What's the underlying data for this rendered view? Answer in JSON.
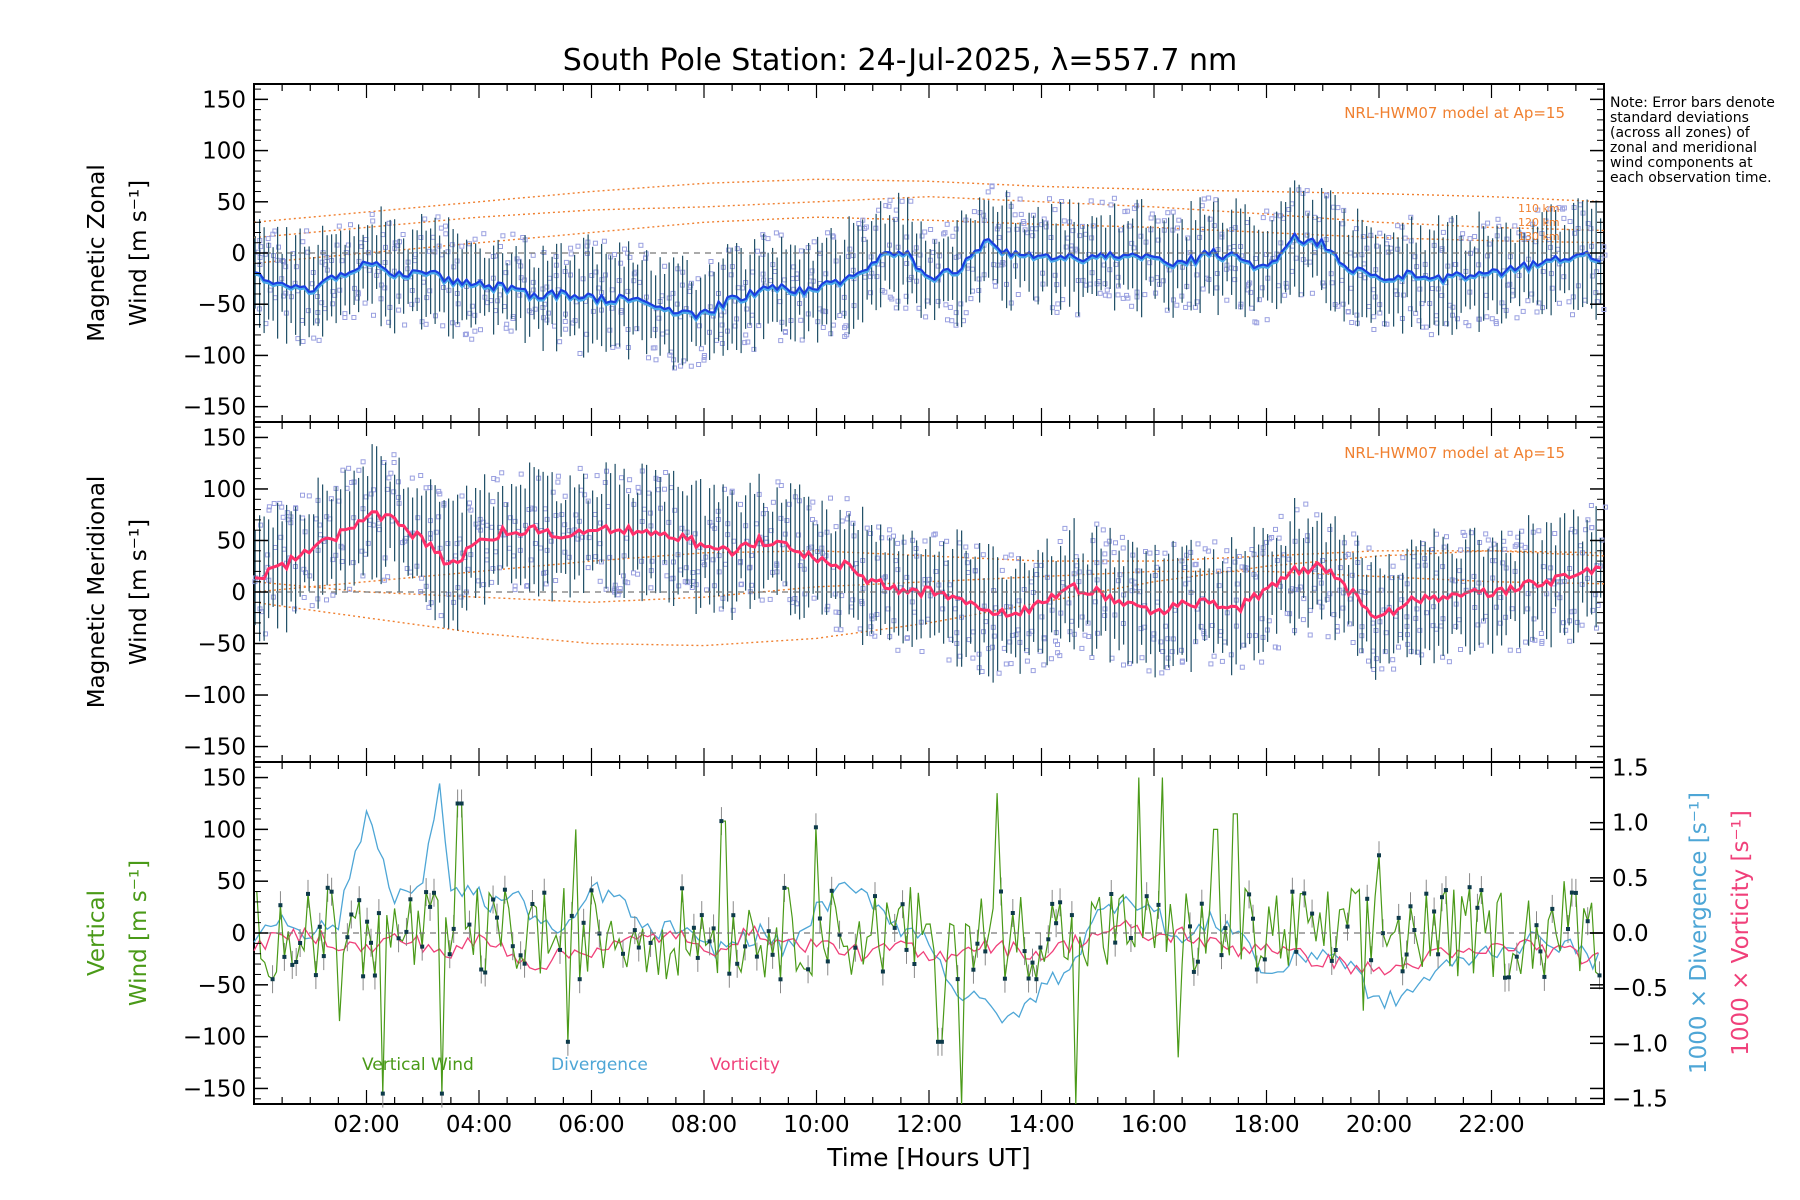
{
  "title": "South Pole Station: 24-Jul-2025, λ=557.7 nm",
  "note": "Note: Error bars denote standard deviations (across all zones) of zonal and meridional wind components at each observation time.",
  "xlabel": "Time [Hours UT]",
  "colors": {
    "zonal_mean": "#1a3fe0",
    "zonal_light": "#4aa8e8",
    "meridional_mean": "#ff2f6a",
    "error_bar": "#1f4e66",
    "scatter": "#9aa0e0",
    "model": "#f08030",
    "vertical": "#4a9a18",
    "divergence": "#4ea6d6",
    "vorticity": "#f0407a",
    "marker": "#0d3a4a"
  },
  "chart_data": [
    {
      "panel": "zonal",
      "type": "line",
      "ylabel": [
        "Magnetic Zonal",
        "Wind [m s⁻¹]"
      ],
      "ylim": [
        -165,
        165
      ],
      "xlim": [
        0,
        24
      ],
      "yticks": [
        -150,
        -100,
        -50,
        0,
        50,
        100,
        150
      ],
      "model_label": "NRL-HWM07 model at Ap=15",
      "model_heights": [
        "110 km",
        "120 km",
        "130 km"
      ],
      "anchors_x": [
        0.0,
        0.5,
        1.0,
        1.5,
        2.0,
        2.5,
        3.0,
        3.5,
        4.0,
        4.5,
        5.0,
        5.5,
        6.0,
        6.5,
        7.0,
        7.5,
        8.0,
        8.5,
        9.0,
        9.5,
        10.0,
        10.5,
        11.0,
        11.5,
        12.0,
        12.5,
        13.0,
        13.5,
        14.0,
        14.5,
        15.0,
        15.5,
        16.0,
        16.5,
        17.0,
        17.5,
        18.0,
        18.5,
        19.0,
        19.5,
        20.0,
        20.5,
        21.0,
        21.5,
        22.0,
        22.5,
        23.0,
        23.5,
        24.0
      ],
      "anchors_y": [
        -20,
        -30,
        -35,
        -20,
        -10,
        -20,
        -20,
        -25,
        -30,
        -35,
        -40,
        -40,
        -45,
        -45,
        -50,
        -55,
        -60,
        -45,
        -35,
        -35,
        -35,
        -25,
        -10,
        5,
        -25,
        -15,
        10,
        0,
        -5,
        -5,
        -5,
        0,
        -5,
        -10,
        0,
        -5,
        -15,
        15,
        10,
        -15,
        -25,
        -20,
        -25,
        -20,
        -20,
        -15,
        -10,
        0,
        -5
      ],
      "spread": 42,
      "models": [
        {
          "height": "110 km",
          "x": [
            0,
            2,
            4,
            6,
            8,
            10,
            12,
            14,
            16,
            18,
            20,
            22,
            24
          ],
          "y": [
            30,
            40,
            50,
            60,
            68,
            72,
            70,
            65,
            62,
            60,
            58,
            55,
            50
          ]
        },
        {
          "height": "120 km",
          "x": [
            0,
            2,
            4,
            6,
            8,
            10,
            12,
            14,
            16,
            18,
            20,
            22,
            24
          ],
          "y": [
            15,
            25,
            35,
            42,
            45,
            50,
            55,
            50,
            45,
            38,
            30,
            25,
            22
          ]
        },
        {
          "height": "130 km",
          "x": [
            0,
            2,
            4,
            6,
            8,
            10,
            12,
            14,
            16,
            18,
            20,
            22,
            24
          ],
          "y": [
            -10,
            0,
            10,
            20,
            30,
            35,
            32,
            28,
            25,
            20,
            15,
            12,
            10
          ]
        }
      ]
    },
    {
      "panel": "meridional",
      "type": "line",
      "ylabel": [
        "Magnetic Meridional",
        "Wind [m s⁻¹]"
      ],
      "ylim": [
        -165,
        165
      ],
      "xlim": [
        0,
        24
      ],
      "yticks": [
        -150,
        -100,
        -50,
        0,
        50,
        100,
        150
      ],
      "model_label": "NRL-HWM07 model at Ap=15",
      "anchors_x": [
        0.0,
        0.5,
        1.0,
        1.5,
        2.0,
        2.5,
        3.0,
        3.5,
        4.0,
        4.5,
        5.0,
        5.5,
        6.0,
        6.5,
        7.0,
        7.5,
        8.0,
        8.5,
        9.0,
        9.5,
        10.0,
        10.5,
        11.0,
        11.5,
        12.0,
        12.5,
        13.0,
        13.5,
        14.0,
        14.5,
        15.0,
        15.5,
        16.0,
        16.5,
        17.0,
        17.5,
        18.0,
        18.5,
        19.0,
        19.5,
        20.0,
        20.5,
        21.0,
        21.5,
        22.0,
        22.5,
        23.0,
        23.5,
        24.0
      ],
      "anchors_y": [
        10,
        25,
        40,
        55,
        75,
        70,
        50,
        25,
        50,
        60,
        60,
        55,
        60,
        60,
        60,
        55,
        45,
        40,
        50,
        45,
        30,
        25,
        10,
        0,
        0,
        -5,
        -15,
        -25,
        -10,
        5,
        0,
        -10,
        -20,
        -10,
        -10,
        -15,
        0,
        20,
        25,
        0,
        -25,
        -10,
        -5,
        0,
        0,
        5,
        10,
        20,
        25
      ],
      "spread": 48,
      "models": [
        {
          "x": [
            0,
            2,
            4,
            6,
            8,
            10,
            12,
            14,
            16,
            18,
            20,
            22,
            24
          ],
          "y": [
            -10,
            -25,
            -40,
            -50,
            -52,
            -45,
            -30,
            -10,
            10,
            25,
            35,
            40,
            38
          ]
        },
        {
          "x": [
            0,
            2,
            4,
            6,
            8,
            10,
            12,
            14,
            16,
            18,
            20,
            22,
            24
          ],
          "y": [
            0,
            10,
            20,
            30,
            38,
            40,
            35,
            30,
            30,
            35,
            40,
            40,
            35
          ]
        },
        {
          "x": [
            0,
            2,
            4,
            6,
            8,
            10,
            12,
            14,
            16,
            18,
            20,
            22,
            24
          ],
          "y": [
            10,
            0,
            -5,
            -10,
            -5,
            5,
            10,
            15,
            20,
            20,
            15,
            10,
            8
          ]
        }
      ]
    },
    {
      "panel": "vertical",
      "type": "line",
      "ylabel": [
        "Vertical",
        "Wind [m s⁻¹]"
      ],
      "ylim": [
        -165,
        165
      ],
      "xlim": [
        0,
        24
      ],
      "yticks": [
        -150,
        -100,
        -50,
        0,
        50,
        100,
        150
      ],
      "right_axis": {
        "ylim": [
          -1.55,
          1.55
        ],
        "yticks": [
          -1.5,
          -1.0,
          -0.5,
          0.0,
          0.5,
          1.0,
          1.5
        ],
        "tick_labels": [
          "−1.5",
          "−1.0",
          "−0.5",
          "0.0",
          "0.5",
          "1.0",
          "1.5"
        ],
        "label_divergence": "1000 × Divergence [s⁻¹]",
        "label_vorticity": "1000 × Vorticity [s⁻¹]"
      },
      "legend": [
        "Vertical Wind",
        "Divergence",
        "Vorticity"
      ],
      "vertical_spikes": [
        {
          "x": 1.5,
          "y": -85
        },
        {
          "x": 2.3,
          "y": -155
        },
        {
          "x": 3.35,
          "y": -155
        },
        {
          "x": 3.65,
          "y": 125
        },
        {
          "x": 5.6,
          "y": -105
        },
        {
          "x": 5.7,
          "y": 100
        },
        {
          "x": 8.35,
          "y": 108
        },
        {
          "x": 10.0,
          "y": 102
        },
        {
          "x": 12.2,
          "y": -105
        },
        {
          "x": 12.6,
          "y": -170
        },
        {
          "x": 13.2,
          "y": 135
        },
        {
          "x": 14.6,
          "y": -170
        },
        {
          "x": 15.75,
          "y": 150
        },
        {
          "x": 16.15,
          "y": 150
        },
        {
          "x": 16.45,
          "y": -120
        },
        {
          "x": 17.1,
          "y": 100
        },
        {
          "x": 17.45,
          "y": 115
        },
        {
          "x": 19.75,
          "y": -75
        },
        {
          "x": 20.0,
          "y": 75
        },
        {
          "x": 23.3,
          "y": 50
        }
      ],
      "divergence_anchors_x": [
        0.0,
        0.5,
        1.0,
        1.5,
        2.0,
        2.5,
        3.0,
        3.3,
        3.5,
        3.8,
        4.2,
        4.6,
        5.0,
        5.5,
        6.0,
        6.5,
        7.0,
        7.5,
        8.0,
        8.5,
        9.0,
        9.5,
        10.0,
        10.5,
        11.0,
        11.5,
        12.0,
        12.5,
        13.0,
        13.5,
        14.0,
        14.5,
        15.0,
        15.5,
        16.0,
        16.5,
        17.0,
        17.5,
        18.0,
        18.5,
        19.0,
        19.5,
        20.0,
        20.5,
        21.0,
        21.5,
        22.0,
        22.5,
        23.0,
        23.5,
        24.0
      ],
      "divergence_anchors_y": [
        -0.05,
        0.15,
        0.0,
        0.1,
        1.1,
        0.35,
        0.4,
        1.4,
        0.3,
        0.45,
        0.25,
        0.35,
        0.15,
        -0.05,
        0.4,
        0.3,
        0.0,
        0.05,
        -0.15,
        -0.1,
        0.0,
        -0.15,
        0.2,
        0.4,
        0.3,
        0.05,
        -0.05,
        -0.55,
        -0.65,
        -0.8,
        -0.5,
        -0.3,
        0.15,
        0.35,
        0.2,
        -0.1,
        0.1,
        0.05,
        -0.4,
        -0.25,
        -0.15,
        -0.3,
        -0.65,
        -0.55,
        -0.35,
        -0.25,
        -0.15,
        -0.1,
        -0.05,
        -0.15,
        -0.3
      ],
      "vorticity_anchors_x": [
        0.0,
        0.5,
        1.0,
        1.5,
        2.0,
        2.5,
        3.0,
        3.5,
        4.0,
        4.5,
        5.0,
        5.5,
        6.0,
        6.5,
        7.0,
        7.5,
        8.0,
        8.5,
        9.0,
        9.5,
        10.0,
        10.5,
        11.0,
        11.5,
        12.0,
        12.5,
        13.0,
        13.5,
        14.0,
        14.5,
        15.0,
        15.5,
        16.0,
        16.5,
        17.0,
        17.5,
        18.0,
        18.5,
        19.0,
        19.5,
        20.0,
        20.5,
        21.0,
        21.5,
        22.0,
        22.5,
        23.0,
        23.5,
        24.0
      ],
      "vorticity_anchors_y": [
        -0.1,
        -0.05,
        0.0,
        -0.1,
        -0.15,
        -0.05,
        -0.1,
        -0.2,
        -0.05,
        -0.15,
        -0.3,
        -0.2,
        -0.15,
        -0.1,
        -0.05,
        0.0,
        -0.2,
        -0.05,
        0.0,
        -0.1,
        -0.1,
        -0.15,
        -0.2,
        -0.1,
        -0.25,
        -0.15,
        -0.1,
        -0.15,
        -0.2,
        -0.1,
        0.0,
        0.05,
        -0.05,
        0.0,
        -0.1,
        -0.15,
        -0.1,
        -0.2,
        -0.25,
        -0.3,
        -0.35,
        -0.3,
        -0.2,
        -0.2,
        -0.15,
        -0.1,
        -0.15,
        -0.2,
        -0.25
      ]
    }
  ],
  "xtick_labels": [
    "02:00",
    "04:00",
    "06:00",
    "08:00",
    "10:00",
    "12:00",
    "14:00",
    "16:00",
    "18:00",
    "20:00",
    "22:00"
  ],
  "xtick_values": [
    2,
    4,
    6,
    8,
    10,
    12,
    14,
    16,
    18,
    20,
    22
  ]
}
